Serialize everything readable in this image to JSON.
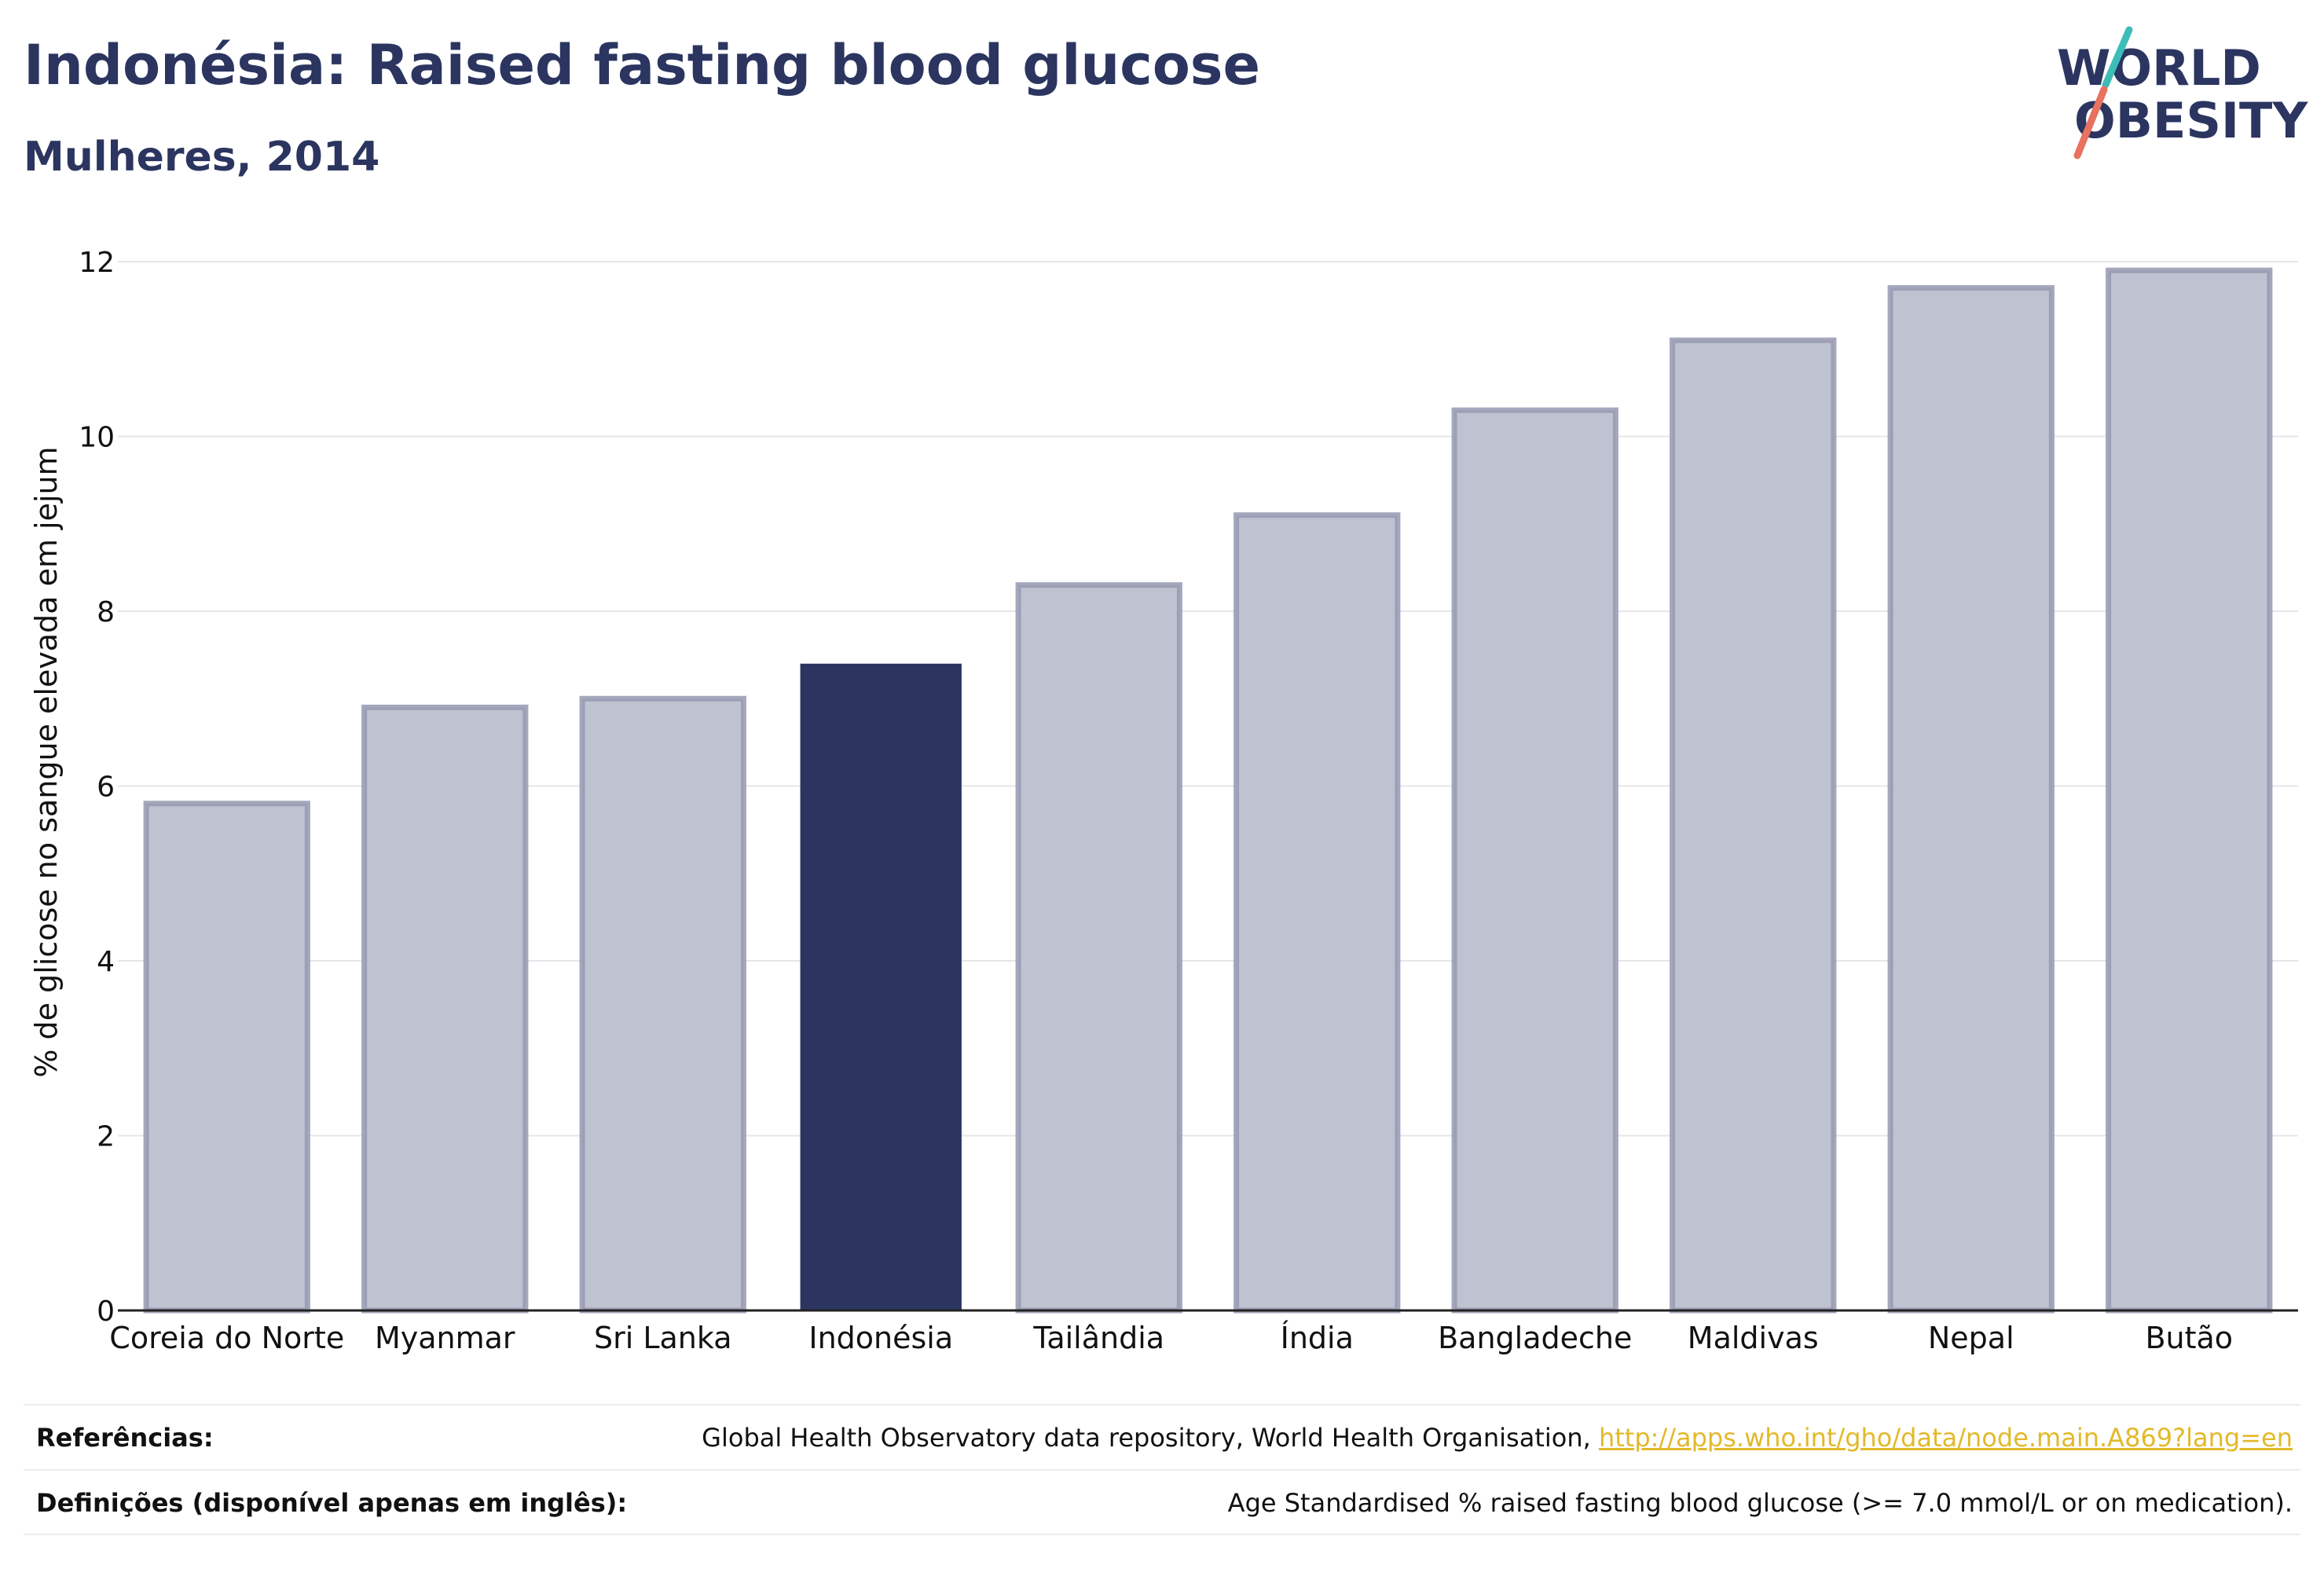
{
  "header": {
    "title": "Indonésia: Raised fasting blood glucose",
    "subtitle": "Mulheres, 2014"
  },
  "logo": {
    "line1": "WORLD",
    "line2": "OBESITY",
    "colors": {
      "text": "#2b3560",
      "slash_top": "#3dbdb8",
      "slash_bottom": "#e8715f"
    }
  },
  "chart_data": {
    "type": "bar",
    "title": "Indonésia: Raised fasting blood glucose",
    "subtitle": "Mulheres, 2014",
    "xlabel": "",
    "ylabel": "% de glicose no sangue elevada em jejum",
    "ylim": [
      0,
      12
    ],
    "yticks": [
      0,
      2,
      4,
      6,
      8,
      10,
      12
    ],
    "grid": true,
    "categories": [
      "Coreia do Norte",
      "Myanmar",
      "Sri Lanka",
      "Indonésia",
      "Tailândia",
      "Índia",
      "Bangladeche",
      "Maldivas",
      "Nepal",
      "Butão"
    ],
    "values": [
      5.8,
      6.9,
      7.0,
      7.4,
      8.3,
      9.1,
      10.3,
      11.1,
      11.7,
      11.9
    ],
    "highlight": "Indonésia",
    "colors": {
      "highlight": "#2b3560",
      "other_fill": "#bfc2d0",
      "other_stroke": "#9599b0",
      "grid": "#e6e6ea",
      "axis": "#222222"
    }
  },
  "footer": {
    "references_label": "Referências:",
    "references_text": "Global Health Observatory data repository, World Health Organisation, ",
    "references_link": "http://apps.who.int/gho/data/node.main.A869?lang=en",
    "definitions_label": "Definições (disponível apenas em inglês):",
    "definitions_text": "Age Standardised % raised fasting blood glucose (>= 7.0 mmol/L or on medication)."
  }
}
